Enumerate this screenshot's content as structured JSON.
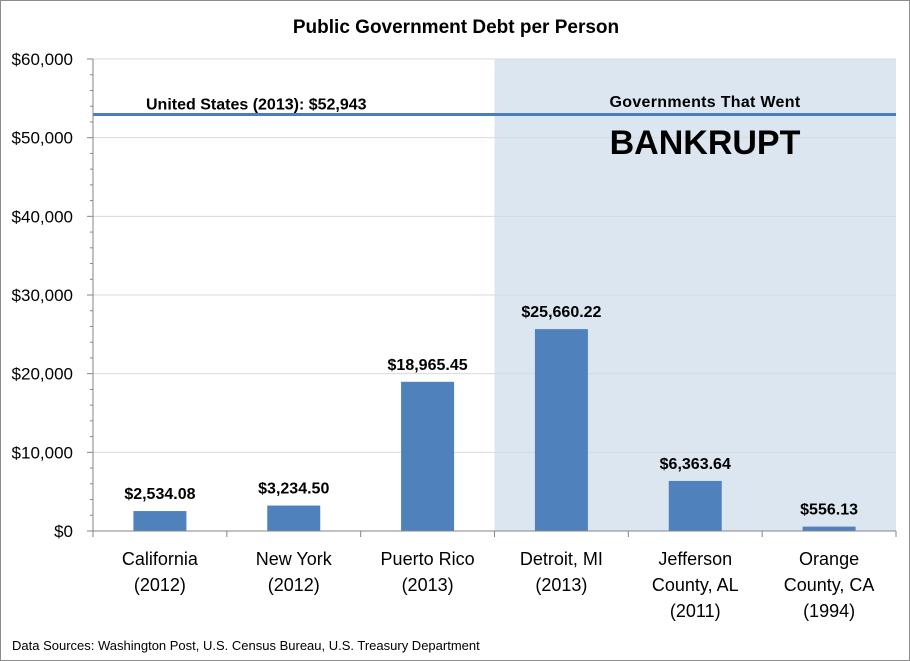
{
  "chart_data": {
    "type": "bar",
    "title": "Public Government Debt per Person",
    "categories": [
      [
        "California",
        "(2012)"
      ],
      [
        "New York",
        "(2012)"
      ],
      [
        "Puerto Rico",
        "(2013)"
      ],
      [
        "Detroit, MI",
        "(2013)"
      ],
      [
        "Jefferson",
        "County, AL",
        "(2011)"
      ],
      [
        "Orange",
        "County, CA",
        "(1994)"
      ]
    ],
    "values": [
      2534.08,
      3234.5,
      18965.45,
      25660.22,
      6363.64,
      556.13
    ],
    "data_labels": [
      "$2,534.08",
      "$3,234.50",
      "$18,965.45",
      "$25,660.22",
      "$6,363.64",
      "$556.13"
    ],
    "ylim": [
      0,
      60000
    ],
    "yticks": [
      0,
      10000,
      20000,
      30000,
      40000,
      50000,
      60000
    ],
    "ytick_labels": [
      "$0",
      "$10,000",
      "$20,000",
      "$30,000",
      "$40,000",
      "$50,000",
      "$60,000"
    ],
    "xlabel": "",
    "ylabel": "",
    "grid": true,
    "reference_line": {
      "value": 52943,
      "label": "United States (2013): $52,943"
    },
    "shaded_region": {
      "start_category_index": 3,
      "label": "Governments  That  Went",
      "big_label": "BANKRUPT"
    },
    "source_note": "Data Sources:  Washington Post, U.S. Census Bureau, U.S. Treasury Department"
  },
  "colors": {
    "bar": "#4f81bd",
    "reference_line": "#4a7ebb",
    "shade": "#dce6f1",
    "grid": "#d9d9d9",
    "axis": "#868686"
  }
}
